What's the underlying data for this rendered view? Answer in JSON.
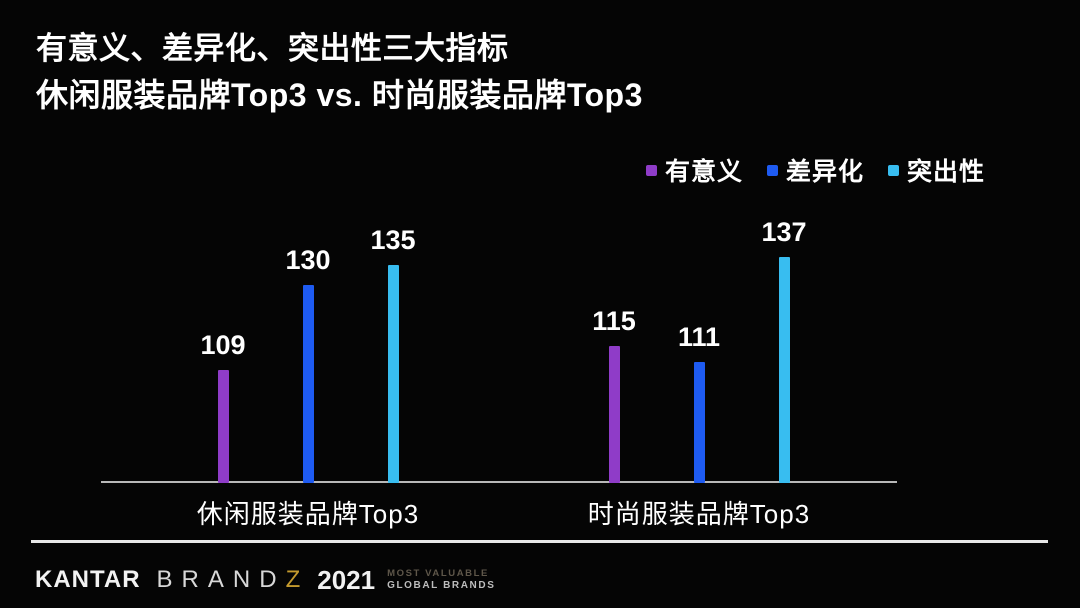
{
  "header": {
    "title_line1": "有意义、差异化、突出性三大指标",
    "title_line2": "休闲服装品牌Top3 vs. 时尚服装品牌Top3"
  },
  "chart_data": {
    "type": "bar",
    "title": "有意义、差异化、突出性三大指标 — 休闲服装品牌Top3 vs. 时尚服装品牌Top3",
    "categories": [
      "休闲服装品牌Top3",
      "时尚服装品牌Top3"
    ],
    "series": [
      {
        "name": "有意义",
        "color": "#8f3cc8",
        "values": [
          109,
          115
        ]
      },
      {
        "name": "差异化",
        "color": "#1e5bf2",
        "values": [
          130,
          111
        ]
      },
      {
        "name": "突出性",
        "color": "#38bdf0",
        "values": [
          135,
          137
        ]
      }
    ],
    "xlabel": "",
    "ylabel": "",
    "ylim": [
      81,
      140
    ],
    "grid": false,
    "legend_position": "top-right",
    "value_labels": true,
    "background": "#050505",
    "axis_color": "#b9b9b9"
  },
  "footer": {
    "kantar": "KANTAR",
    "brandz_letters": "BRAND",
    "brandz_z": "Z",
    "year": "2021",
    "tagline_line1": "MOST VALUABLE",
    "tagline_line2": "GLOBAL BRANDS"
  }
}
